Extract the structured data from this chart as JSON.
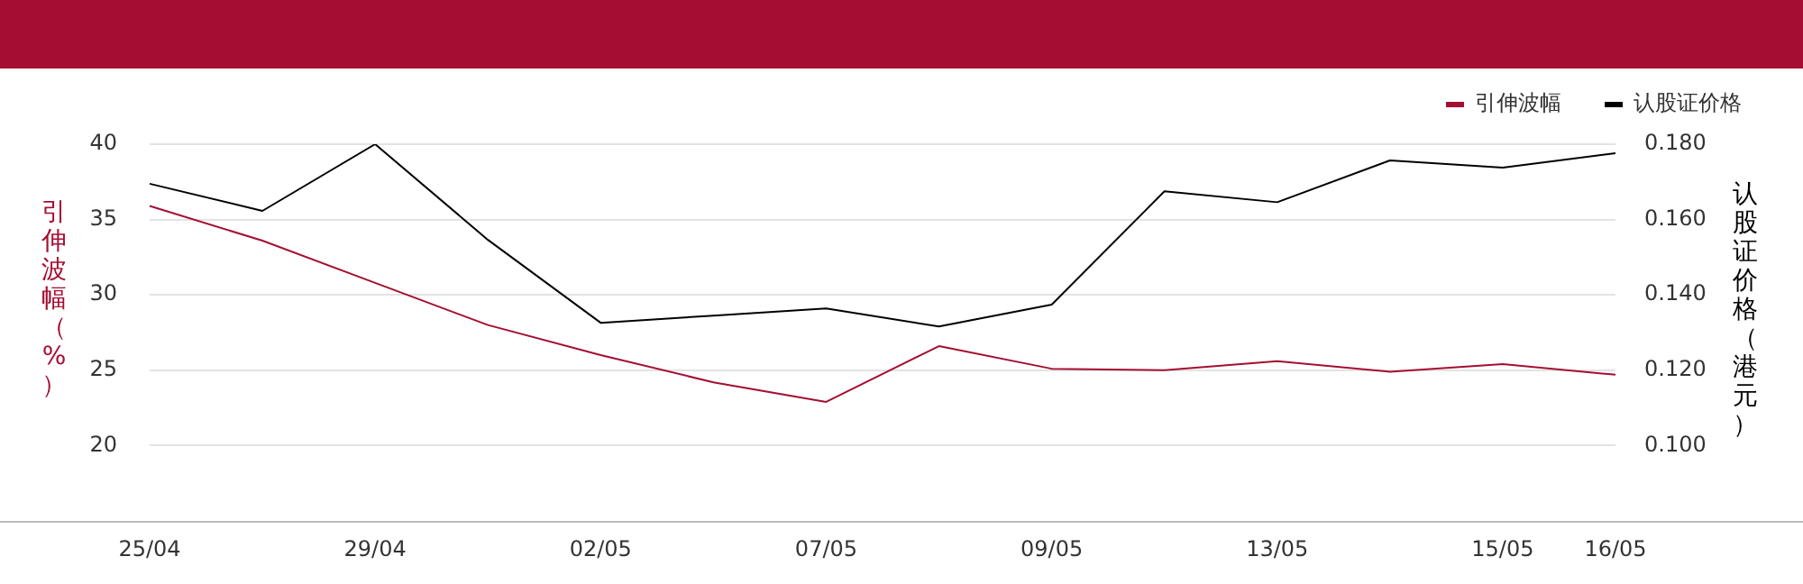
{
  "chart_data": {
    "type": "line",
    "ylabel": "引伸波幅（%）",
    "y2label": "认股证价格（港元）",
    "categories": [
      "25/04",
      null,
      "29/04",
      null,
      "02/05",
      null,
      "07/05",
      null,
      "09/05",
      null,
      "13/05",
      null,
      "15/05",
      "16/05"
    ],
    "series": [
      {
        "name": "引伸波幅",
        "color": "#a50e32",
        "values": [
          35.9,
          33.6,
          30.8,
          28.0,
          26.0,
          24.2,
          22.9,
          26.6,
          25.1,
          25.0,
          25.6,
          24.9,
          25.4,
          24.7
        ]
      },
      {
        "name": "认股证价格",
        "color": "#000000",
        "axis": "y2",
        "values": [
          0.1695,
          0.1623,
          0.18,
          0.1546,
          0.1326,
          0.1345,
          0.1364,
          0.1316,
          0.1374,
          0.1675,
          0.1646,
          0.1757,
          0.1738,
          0.1776
        ]
      }
    ],
    "ylim": [
      15,
      40
    ],
    "yticks": [
      20,
      25,
      30,
      35,
      40
    ],
    "y2lim": [
      0.08,
      0.18
    ],
    "y2ticks": [
      {
        "value": 0.1,
        "label": "0.100"
      },
      {
        "value": 0.12,
        "label": "0.120"
      },
      {
        "value": 0.14,
        "label": "0.140"
      },
      {
        "value": 0.16,
        "label": "0.160"
      },
      {
        "value": 0.18,
        "label": "0.180"
      }
    ],
    "grid": "y",
    "legend": "top right",
    "marker": "none",
    "line_style": "solid"
  }
}
